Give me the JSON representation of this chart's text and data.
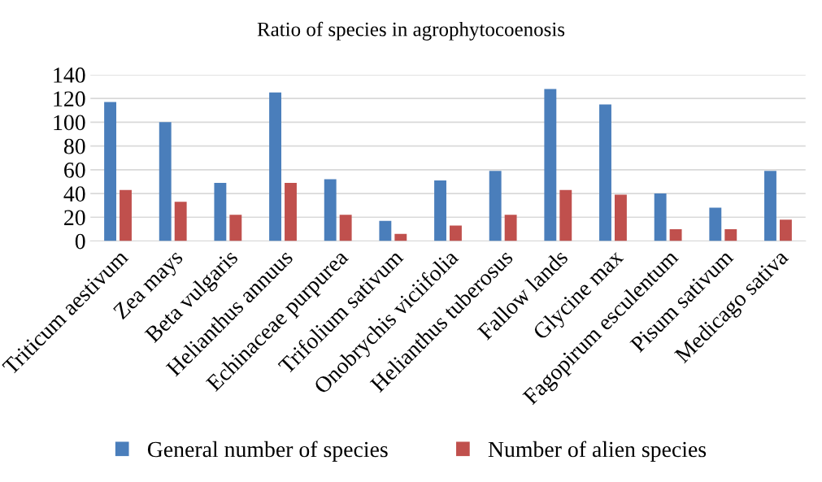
{
  "chart_data": {
    "type": "bar",
    "title": "Ratio of species in agrophytocoenosis",
    "categories": [
      "Triticum aestivum",
      "Zea mays",
      "Beta vulgaris",
      "Helianthus annuus",
      "Echinaceae purpurea",
      "Trifolium sativum",
      "Onobrychis viciifolia",
      "Helianthus tuberosus",
      "Fallow lands",
      "Glycine max",
      "Fagopirum esculentum",
      "Pisum sativum",
      "Medicago sativa"
    ],
    "series": [
      {
        "name": "General number of species",
        "color": "#4a7ebb",
        "values": [
          117,
          100,
          49,
          125,
          52,
          17,
          51,
          59,
          128,
          115,
          40,
          28,
          59
        ]
      },
      {
        "name": "Number of alien species",
        "color": "#c0504d",
        "values": [
          43,
          33,
          22,
          49,
          22,
          6,
          13,
          22,
          43,
          39,
          10,
          10,
          18
        ]
      }
    ],
    "ylim": [
      0,
      140
    ],
    "yticks": [
      0,
      20,
      40,
      60,
      80,
      100,
      120,
      140
    ],
    "grid": "y",
    "legend": "bottom"
  }
}
